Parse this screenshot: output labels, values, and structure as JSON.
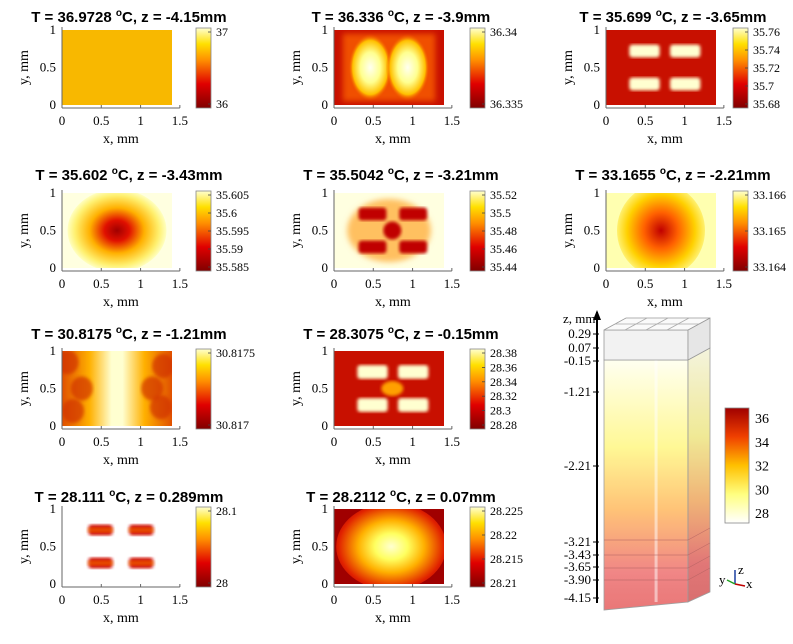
{
  "chart_data": [
    {
      "type": "heatmap",
      "title_t": "T = 36.9728 ",
      "title_sup": "o",
      "title_rest": "C, z = -4.15mm",
      "xlabel": "x, mm",
      "ylabel": "y, mm",
      "xticks": [
        "0",
        "0.5",
        "1",
        "1.5"
      ],
      "yticks": [
        "0",
        "0.5",
        "1"
      ],
      "xlim": [
        0,
        1.5
      ],
      "ylim": [
        0,
        1
      ],
      "pattern": "uniform",
      "colorbar_ticks": [
        "37",
        "36"
      ]
    },
    {
      "type": "heatmap",
      "title_t": "T = 36.336 ",
      "title_sup": "o",
      "title_rest": "C, z = -3.9mm",
      "xlabel": "x, mm",
      "ylabel": "y, mm",
      "xticks": [
        "0",
        "0.5",
        "1",
        "1.5"
      ],
      "yticks": [
        "0",
        "0.5",
        "1"
      ],
      "xlim": [
        0,
        1.5
      ],
      "ylim": [
        0,
        1
      ],
      "pattern": "twin-columns",
      "colorbar_ticks": [
        "36.34",
        "36.335"
      ]
    },
    {
      "type": "heatmap",
      "title_t": "T = 35.699 ",
      "title_sup": "o",
      "title_rest": "C, z = -3.65mm",
      "xlabel": "x, mm",
      "ylabel": "y, mm",
      "xticks": [
        "0",
        "0.5",
        "1",
        "1.5"
      ],
      "yticks": [
        "0",
        "0.5",
        "1"
      ],
      "xlim": [
        0,
        1.5
      ],
      "ylim": [
        0,
        1
      ],
      "pattern": "four-blocks",
      "colorbar_ticks": [
        "35.76",
        "35.74",
        "35.72",
        "35.7",
        "35.68"
      ]
    },
    {
      "type": "heatmap",
      "title_t": "T = 35.602 ",
      "title_sup": "o",
      "title_rest": "C, z = -3.43mm",
      "xlabel": "x, mm",
      "ylabel": "y, mm",
      "xticks": [
        "0",
        "0.5",
        "1",
        "1.5"
      ],
      "yticks": [
        "0",
        "0.5",
        "1"
      ],
      "xlim": [
        0,
        1.5
      ],
      "ylim": [
        0,
        1
      ],
      "pattern": "center-cold",
      "colorbar_ticks": [
        "35.605",
        "35.6",
        "35.595",
        "35.59",
        "35.585"
      ]
    },
    {
      "type": "heatmap",
      "title_t": "T = 35.5042 ",
      "title_sup": "o",
      "title_rest": "C, z = -3.21mm",
      "xlabel": "x, mm",
      "ylabel": "y, mm",
      "xticks": [
        "0",
        "0.5",
        "1",
        "1.5"
      ],
      "yticks": [
        "0",
        "0.5",
        "1"
      ],
      "xlim": [
        0,
        1.5
      ],
      "ylim": [
        0,
        1
      ],
      "pattern": "blocks-center-cold",
      "colorbar_ticks": [
        "35.52",
        "35.5",
        "35.48",
        "35.46",
        "35.44"
      ]
    },
    {
      "type": "heatmap",
      "title_t": "T = 33.1655 ",
      "title_sup": "o",
      "title_rest": "C, z = -2.21mm",
      "xlabel": "x, mm",
      "ylabel": "y, mm",
      "xticks": [
        "0",
        "0.5",
        "1",
        "1.5"
      ],
      "yticks": [
        "0",
        "0.5",
        "1"
      ],
      "xlim": [
        0,
        1.5
      ],
      "ylim": [
        0,
        1
      ],
      "pattern": "center-cold-soft",
      "colorbar_ticks": [
        "33.166",
        "33.165",
        "33.164"
      ]
    },
    {
      "type": "heatmap",
      "title_t": "T = 30.8175 ",
      "title_sup": "o",
      "title_rest": "C, z = -1.21mm",
      "xlabel": "x, mm",
      "ylabel": "y, mm",
      "xticks": [
        "0",
        "0.5",
        "1",
        "1.5"
      ],
      "yticks": [
        "0",
        "0.5",
        "1"
      ],
      "xlim": [
        0,
        1.5
      ],
      "ylim": [
        0,
        1
      ],
      "pattern": "center-stripe-hot",
      "colorbar_ticks": [
        "30.8175",
        "30.817"
      ]
    },
    {
      "type": "heatmap",
      "title_t": "T = 28.3075 ",
      "title_sup": "o",
      "title_rest": "C, z = -0.15mm",
      "xlabel": "x, mm",
      "ylabel": "y, mm",
      "xticks": [
        "0",
        "0.5",
        "1",
        "1.5"
      ],
      "yticks": [
        "0",
        "0.5",
        "1"
      ],
      "xlim": [
        0,
        1.5
      ],
      "ylim": [
        0,
        1
      ],
      "pattern": "four-blocks-x",
      "colorbar_ticks": [
        "28.38",
        "28.36",
        "28.34",
        "28.32",
        "28.3",
        "28.28"
      ]
    },
    {
      "type": "heatmap",
      "title_t": "T = 28.111 ",
      "title_sup": "o",
      "title_rest": "C, z = 0.289mm",
      "xlabel": "x, mm",
      "ylabel": "y, mm",
      "xticks": [
        "0",
        "0.5",
        "1",
        "1.5"
      ],
      "yticks": [
        "0",
        "0.5",
        "1"
      ],
      "xlim": [
        0,
        1.5
      ],
      "ylim": [
        0,
        1
      ],
      "pattern": "four-blocks-on-white",
      "colorbar_ticks": [
        "28.1",
        "28"
      ]
    },
    {
      "type": "heatmap",
      "title_t": "T = 28.2112 ",
      "title_sup": "o",
      "title_rest": "C, z = 0.07mm",
      "xlabel": "x, mm",
      "ylabel": "y, mm",
      "xticks": [
        "0",
        "0.5",
        "1",
        "1.5"
      ],
      "yticks": [
        "0",
        "0.5",
        "1"
      ],
      "xlim": [
        0,
        1.5
      ],
      "ylim": [
        0,
        1
      ],
      "pattern": "center-hot",
      "colorbar_ticks": [
        "28.225",
        "28.22",
        "28.215",
        "28.21"
      ]
    }
  ],
  "model3d": {
    "z_axis_label": "z, mm",
    "z_ticks": [
      "0.29",
      "0.07",
      "-0.15",
      "-1.21",
      "-2.21",
      "-3.21",
      "-3.43",
      "-3.65",
      "-3.90",
      "-4.15"
    ],
    "colorbar_ticks": [
      "36",
      "34",
      "32",
      "30",
      "28"
    ],
    "triad": {
      "z": "z",
      "y": "y",
      "x": "x"
    }
  },
  "colors": {
    "hot_max": "#ffffd8",
    "yellow": "#ffd800",
    "orange": "#f08000",
    "red": "#c81000",
    "dark_red": "#800000"
  }
}
